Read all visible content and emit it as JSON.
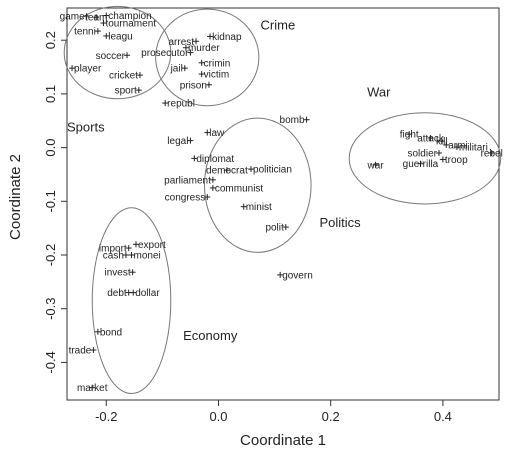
{
  "chart_data": {
    "type": "scatter",
    "xlabel": "Coordinate 1",
    "ylabel": "Coordinate 2",
    "xlim": [
      -0.27,
      0.5
    ],
    "ylim": [
      -0.47,
      0.26
    ],
    "xticks": [
      {
        "value": -0.2,
        "label": "-0.2"
      },
      {
        "value": 0.0,
        "label": "0.0"
      },
      {
        "value": 0.2,
        "label": "0.2"
      },
      {
        "value": 0.4,
        "label": "0.4"
      }
    ],
    "yticks": [
      {
        "value": 0.2,
        "label": "0.2"
      },
      {
        "value": 0.1,
        "label": "0.1"
      },
      {
        "value": 0.0,
        "label": "0.0"
      },
      {
        "value": -0.1,
        "label": "-0.1"
      },
      {
        "value": -0.2,
        "label": "-0.2"
      },
      {
        "value": -0.3,
        "label": "-0.3"
      },
      {
        "value": -0.4,
        "label": "-0.4"
      }
    ],
    "grid": false,
    "points": [
      {
        "label": "game",
        "x": -0.235,
        "y": 0.245,
        "anchor": "end"
      },
      {
        "label": "team",
        "x": -0.218,
        "y": 0.243,
        "anchor": "middle"
      },
      {
        "label": "champion",
        "x": -0.2,
        "y": 0.246,
        "anchor": "start"
      },
      {
        "label": "tournament",
        "x": -0.205,
        "y": 0.232,
        "anchor": "start"
      },
      {
        "label": "tenni",
        "x": -0.215,
        "y": 0.217,
        "anchor": "end"
      },
      {
        "label": "leagu",
        "x": -0.2,
        "y": 0.208,
        "anchor": "start"
      },
      {
        "label": "soccer",
        "x": -0.163,
        "y": 0.172,
        "anchor": "end"
      },
      {
        "label": "player",
        "x": -0.261,
        "y": 0.148,
        "anchor": "start"
      },
      {
        "label": "cricket",
        "x": -0.14,
        "y": 0.135,
        "anchor": "end"
      },
      {
        "label": "sport",
        "x": -0.142,
        "y": 0.107,
        "anchor": "end"
      },
      {
        "label": "arrest",
        "x": -0.04,
        "y": 0.198,
        "anchor": "end"
      },
      {
        "label": "kidnap",
        "x": -0.015,
        "y": 0.207,
        "anchor": "start"
      },
      {
        "label": "murder",
        "x": -0.058,
        "y": 0.186,
        "anchor": "start"
      },
      {
        "label": "prosecutor",
        "x": -0.05,
        "y": 0.177,
        "anchor": "end"
      },
      {
        "label": "crimin",
        "x": -0.03,
        "y": 0.158,
        "anchor": "start"
      },
      {
        "label": "jail",
        "x": -0.06,
        "y": 0.148,
        "anchor": "end"
      },
      {
        "label": "victim",
        "x": -0.03,
        "y": 0.137,
        "anchor": "start"
      },
      {
        "label": "prison",
        "x": -0.017,
        "y": 0.117,
        "anchor": "end"
      },
      {
        "label": "republ",
        "x": -0.095,
        "y": 0.083,
        "anchor": "start"
      },
      {
        "label": "legal",
        "x": -0.05,
        "y": 0.013,
        "anchor": "end"
      },
      {
        "label": "law",
        "x": -0.02,
        "y": 0.028,
        "anchor": "start"
      },
      {
        "label": "bomb",
        "x": 0.157,
        "y": 0.052,
        "anchor": "end"
      },
      {
        "label": "diplomat",
        "x": -0.043,
        "y": -0.02,
        "anchor": "start"
      },
      {
        "label": "democrat",
        "x": 0.015,
        "y": -0.042,
        "anchor": "middle"
      },
      {
        "label": "politician",
        "x": 0.058,
        "y": -0.04,
        "anchor": "start"
      },
      {
        "label": "parliament",
        "x": -0.01,
        "y": -0.06,
        "anchor": "end"
      },
      {
        "label": "communist",
        "x": -0.01,
        "y": -0.075,
        "anchor": "start"
      },
      {
        "label": "congress",
        "x": -0.02,
        "y": -0.092,
        "anchor": "end"
      },
      {
        "label": "minist",
        "x": 0.045,
        "y": -0.11,
        "anchor": "start"
      },
      {
        "label": "polit",
        "x": 0.12,
        "y": -0.148,
        "anchor": "end"
      },
      {
        "label": "fight",
        "x": 0.34,
        "y": 0.025,
        "anchor": "middle"
      },
      {
        "label": "attack",
        "x": 0.378,
        "y": 0.018,
        "anchor": "middle"
      },
      {
        "label": "kill",
        "x": 0.398,
        "y": 0.012,
        "anchor": "middle"
      },
      {
        "label": "armi",
        "x": 0.406,
        "y": 0.005,
        "anchor": "start"
      },
      {
        "label": "militari",
        "x": 0.425,
        "y": 0.001,
        "anchor": "start"
      },
      {
        "label": "soldier",
        "x": 0.393,
        "y": -0.01,
        "anchor": "end"
      },
      {
        "label": "rebel",
        "x": 0.487,
        "y": -0.01,
        "anchor": "middle"
      },
      {
        "label": "troop",
        "x": 0.4,
        "y": -0.022,
        "anchor": "start"
      },
      {
        "label": "guerrilla",
        "x": 0.36,
        "y": -0.03,
        "anchor": "middle"
      },
      {
        "label": "war",
        "x": 0.28,
        "y": -0.032,
        "anchor": "middle"
      },
      {
        "label": "import",
        "x": -0.16,
        "y": -0.187,
        "anchor": "end"
      },
      {
        "label": "export",
        "x": -0.147,
        "y": -0.18,
        "anchor": "start"
      },
      {
        "label": "cash",
        "x": -0.165,
        "y": -0.2,
        "anchor": "end"
      },
      {
        "label": "monei",
        "x": -0.155,
        "y": -0.2,
        "anchor": "start"
      },
      {
        "label": "invest",
        "x": -0.153,
        "y": -0.232,
        "anchor": "end"
      },
      {
        "label": "debt",
        "x": -0.16,
        "y": -0.27,
        "anchor": "end"
      },
      {
        "label": "dollar",
        "x": -0.152,
        "y": -0.27,
        "anchor": "start"
      },
      {
        "label": "bond",
        "x": -0.215,
        "y": -0.343,
        "anchor": "start"
      },
      {
        "label": "trade",
        "x": -0.223,
        "y": -0.377,
        "anchor": "end"
      },
      {
        "label": "market",
        "x": -0.225,
        "y": -0.447,
        "anchor": "middle"
      },
      {
        "label": "govern",
        "x": 0.11,
        "y": -0.237,
        "anchor": "start"
      }
    ],
    "clusters": [
      {
        "label": "Sports",
        "cx": -0.18,
        "cy": 0.177,
        "rx": 0.095,
        "ry": 0.086,
        "label_x": -0.27,
        "label_y": 0.03
      },
      {
        "label": "Crime",
        "cx": -0.02,
        "cy": 0.168,
        "rx": 0.092,
        "ry": 0.09,
        "label_x": 0.075,
        "label_y": 0.22
      },
      {
        "label": "War",
        "cx": 0.368,
        "cy": -0.02,
        "rx": 0.135,
        "ry": 0.085,
        "label_x": 0.265,
        "label_y": 0.095
      },
      {
        "label": "Politics",
        "cx": 0.07,
        "cy": -0.07,
        "rx": 0.095,
        "ry": 0.125,
        "label_x": 0.18,
        "label_y": -0.148
      },
      {
        "label": "Economy",
        "cx": -0.155,
        "cy": -0.285,
        "rx": 0.07,
        "ry": 0.173,
        "label_x": -0.063,
        "label_y": -0.358
      }
    ]
  }
}
